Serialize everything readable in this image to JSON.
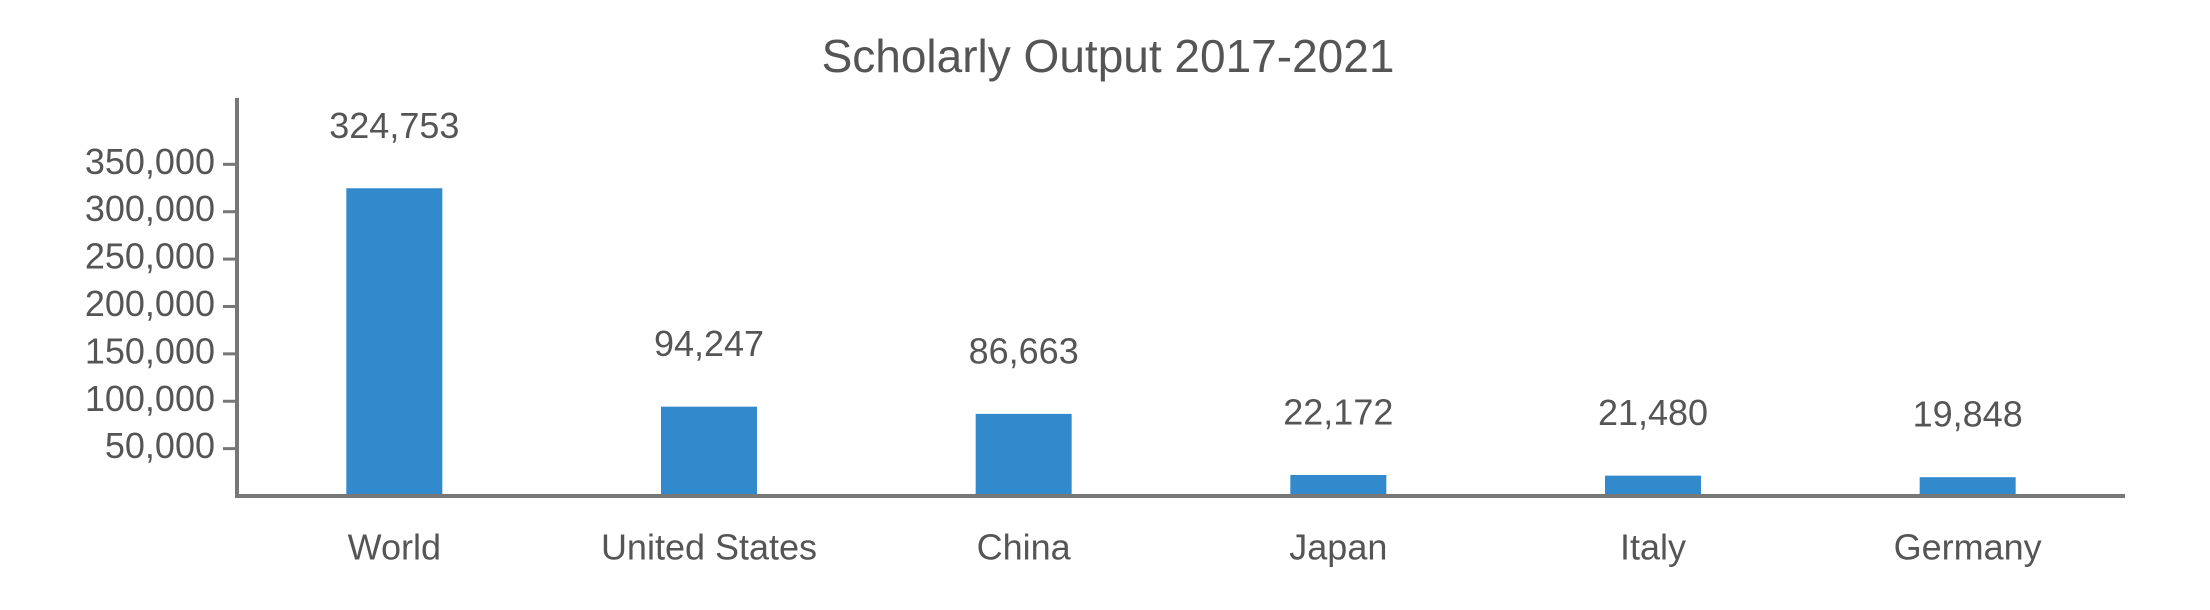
{
  "chart_data": {
    "type": "bar",
    "title": "Scholarly Output 2017-2021",
    "categories": [
      "World",
      "United States",
      "China",
      "Japan",
      "Italy",
      "Germany"
    ],
    "values": [
      324753,
      94247,
      86663,
      22172,
      21480,
      19848
    ],
    "value_labels": [
      "324,753",
      "94,247",
      "86,663",
      "22,172",
      "21,480",
      "19,848"
    ],
    "color": "#3289cc",
    "ylim": [
      0,
      420000
    ],
    "yticks": [
      {
        "value": 50000,
        "label": "50,000"
      },
      {
        "value": 100000,
        "label": "100,000"
      },
      {
        "value": 150000,
        "label": "150,000"
      },
      {
        "value": 200000,
        "label": "200,000"
      },
      {
        "value": 250000,
        "label": "250,000"
      },
      {
        "value": 300000,
        "label": "300,000"
      },
      {
        "value": 350000,
        "label": "350,000"
      }
    ]
  }
}
